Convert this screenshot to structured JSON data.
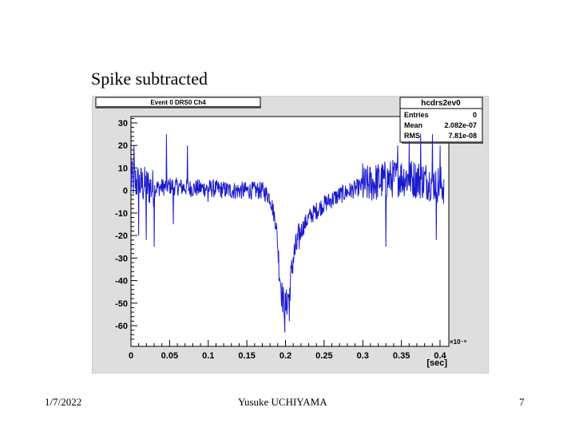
{
  "slide": {
    "title": "Spike subtracted",
    "footer_date": "1/7/2022",
    "footer_author": "Yusuke UCHIYAMA",
    "footer_page": "7"
  },
  "chart_data": {
    "type": "line",
    "title": "Event 0 DRS0 Ch4",
    "xlabel": "[sec]",
    "x_exponent": "×10⁻⁶",
    "ylabel": "",
    "xlim": [
      0,
      0.41
    ],
    "ylim": [
      -68,
      33
    ],
    "x_ticks": [
      0,
      0.05,
      0.1,
      0.15,
      0.2,
      0.25,
      0.3,
      0.35,
      0.4
    ],
    "x_tick_labels": [
      "0",
      "0.05",
      "0.1",
      "0.15",
      "0.2",
      "0.25",
      "0.3",
      "0.35",
      "0.4"
    ],
    "y_ticks": [
      30,
      20,
      10,
      0,
      -10,
      -20,
      -30,
      -40,
      -50,
      -60
    ],
    "y_tick_labels": [
      "30",
      "20",
      "10",
      "0",
      "-10",
      "-20",
      "-30",
      "-40",
      "-50",
      "-60"
    ],
    "grid": false,
    "stats_box": {
      "name": "hcdrs2ev0",
      "rows": [
        {
          "label": "Entries",
          "value": "0"
        },
        {
          "label": "Mean",
          "value": "2.082e-07"
        },
        {
          "label": "RMS",
          "value": "7.81e-08"
        }
      ]
    },
    "series": [
      {
        "color": "#1a1acc",
        "envelope_x": [
          0,
          0.01,
          0.02,
          0.03,
          0.05,
          0.08,
          0.1,
          0.13,
          0.15,
          0.17,
          0.18,
          0.188,
          0.192,
          0.196,
          0.2,
          0.205,
          0.21,
          0.22,
          0.23,
          0.25,
          0.27,
          0.3,
          0.32,
          0.35,
          0.37,
          0.39,
          0.405
        ],
        "envelope_y": [
          5,
          3,
          2,
          1,
          2,
          1,
          1,
          0,
          0,
          0,
          -3,
          -15,
          -35,
          -48,
          -52,
          -45,
          -30,
          -18,
          -12,
          -6,
          -2,
          2,
          4,
          6,
          5,
          4,
          2
        ],
        "spikes": [
          {
            "x": 0.004,
            "y": 20
          },
          {
            "x": 0.01,
            "y": -20
          },
          {
            "x": 0.02,
            "y": -22
          },
          {
            "x": 0.03,
            "y": -25
          },
          {
            "x": 0.046,
            "y": 25
          },
          {
            "x": 0.055,
            "y": -15
          },
          {
            "x": 0.073,
            "y": 20
          },
          {
            "x": 0.1,
            "y": -5
          },
          {
            "x": 0.199,
            "y": -63
          },
          {
            "x": 0.205,
            "y": -58
          },
          {
            "x": 0.3,
            "y": 12
          },
          {
            "x": 0.33,
            "y": -25
          },
          {
            "x": 0.345,
            "y": 20
          },
          {
            "x": 0.36,
            "y": 22
          },
          {
            "x": 0.375,
            "y": 25
          },
          {
            "x": 0.39,
            "y": 25
          },
          {
            "x": 0.395,
            "y": -22
          },
          {
            "x": 0.4,
            "y": 20
          }
        ],
        "noise_amplitude": 4
      }
    ]
  }
}
